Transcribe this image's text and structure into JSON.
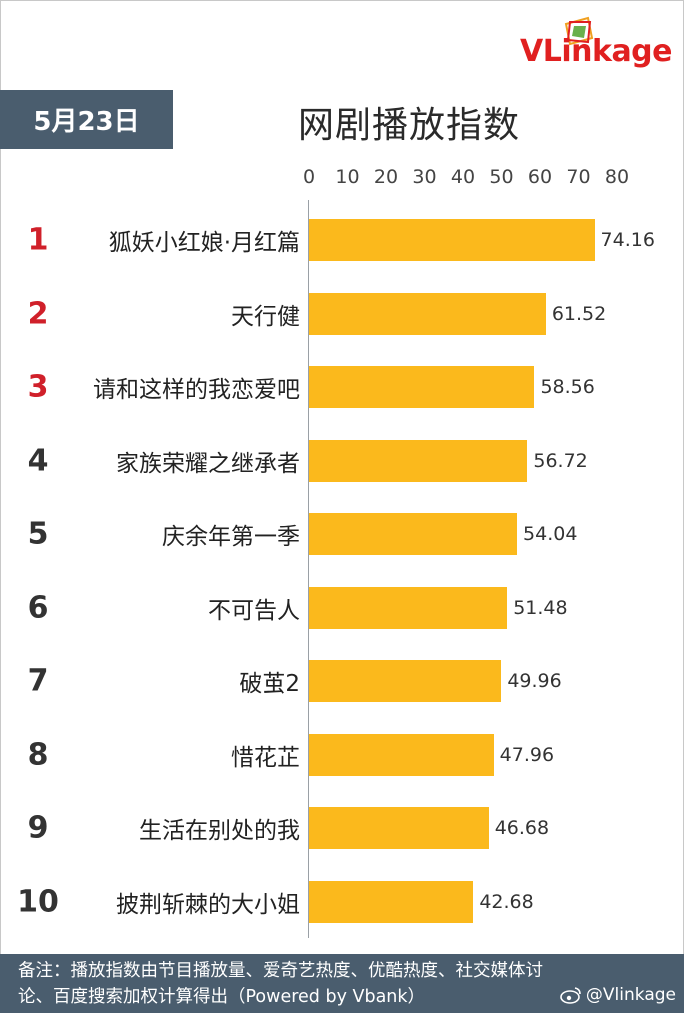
{
  "logo": {
    "text_v": "VLink",
    "text_rest": "age"
  },
  "date_tag": "5月23日",
  "chart_data": {
    "type": "bar",
    "title": "网剧播放指数",
    "orientation": "horizontal",
    "xlim": [
      0,
      80
    ],
    "ticks": [
      0,
      10,
      20,
      30,
      40,
      50,
      60,
      70,
      80
    ],
    "ranks": [
      "1",
      "2",
      "3",
      "4",
      "5",
      "6",
      "7",
      "8",
      "9",
      "10"
    ],
    "categories": [
      "狐妖小红娘·月红篇",
      "天行健",
      "请和这样的我恋爱吧",
      "家族荣耀之继承者",
      "庆余年第一季",
      "不可告人",
      "破茧2",
      "惜花芷",
      "生活在别处的我",
      "披荆斩棘的大小姐"
    ],
    "values": [
      74.16,
      61.52,
      58.56,
      56.72,
      54.04,
      51.48,
      49.96,
      47.96,
      46.68,
      42.68
    ],
    "value_labels": [
      "74.16",
      "61.52",
      "58.56",
      "56.72",
      "54.04",
      "51.48",
      "49.96",
      "47.96",
      "46.68",
      "42.68"
    ],
    "bar_color": "#fbb91c",
    "top_rank_color": "#d0202a",
    "grid": false
  },
  "footer": {
    "note_line1": "备注：播放指数由节目播放量、爱奇艺热度、优酷热度、社交媒体讨",
    "note_line2": "论、百度搜索加权计算得出（Powered by Vbank）",
    "weibo_handle": "@Vlinkage",
    "bg_color": "#4a5d6e"
  }
}
